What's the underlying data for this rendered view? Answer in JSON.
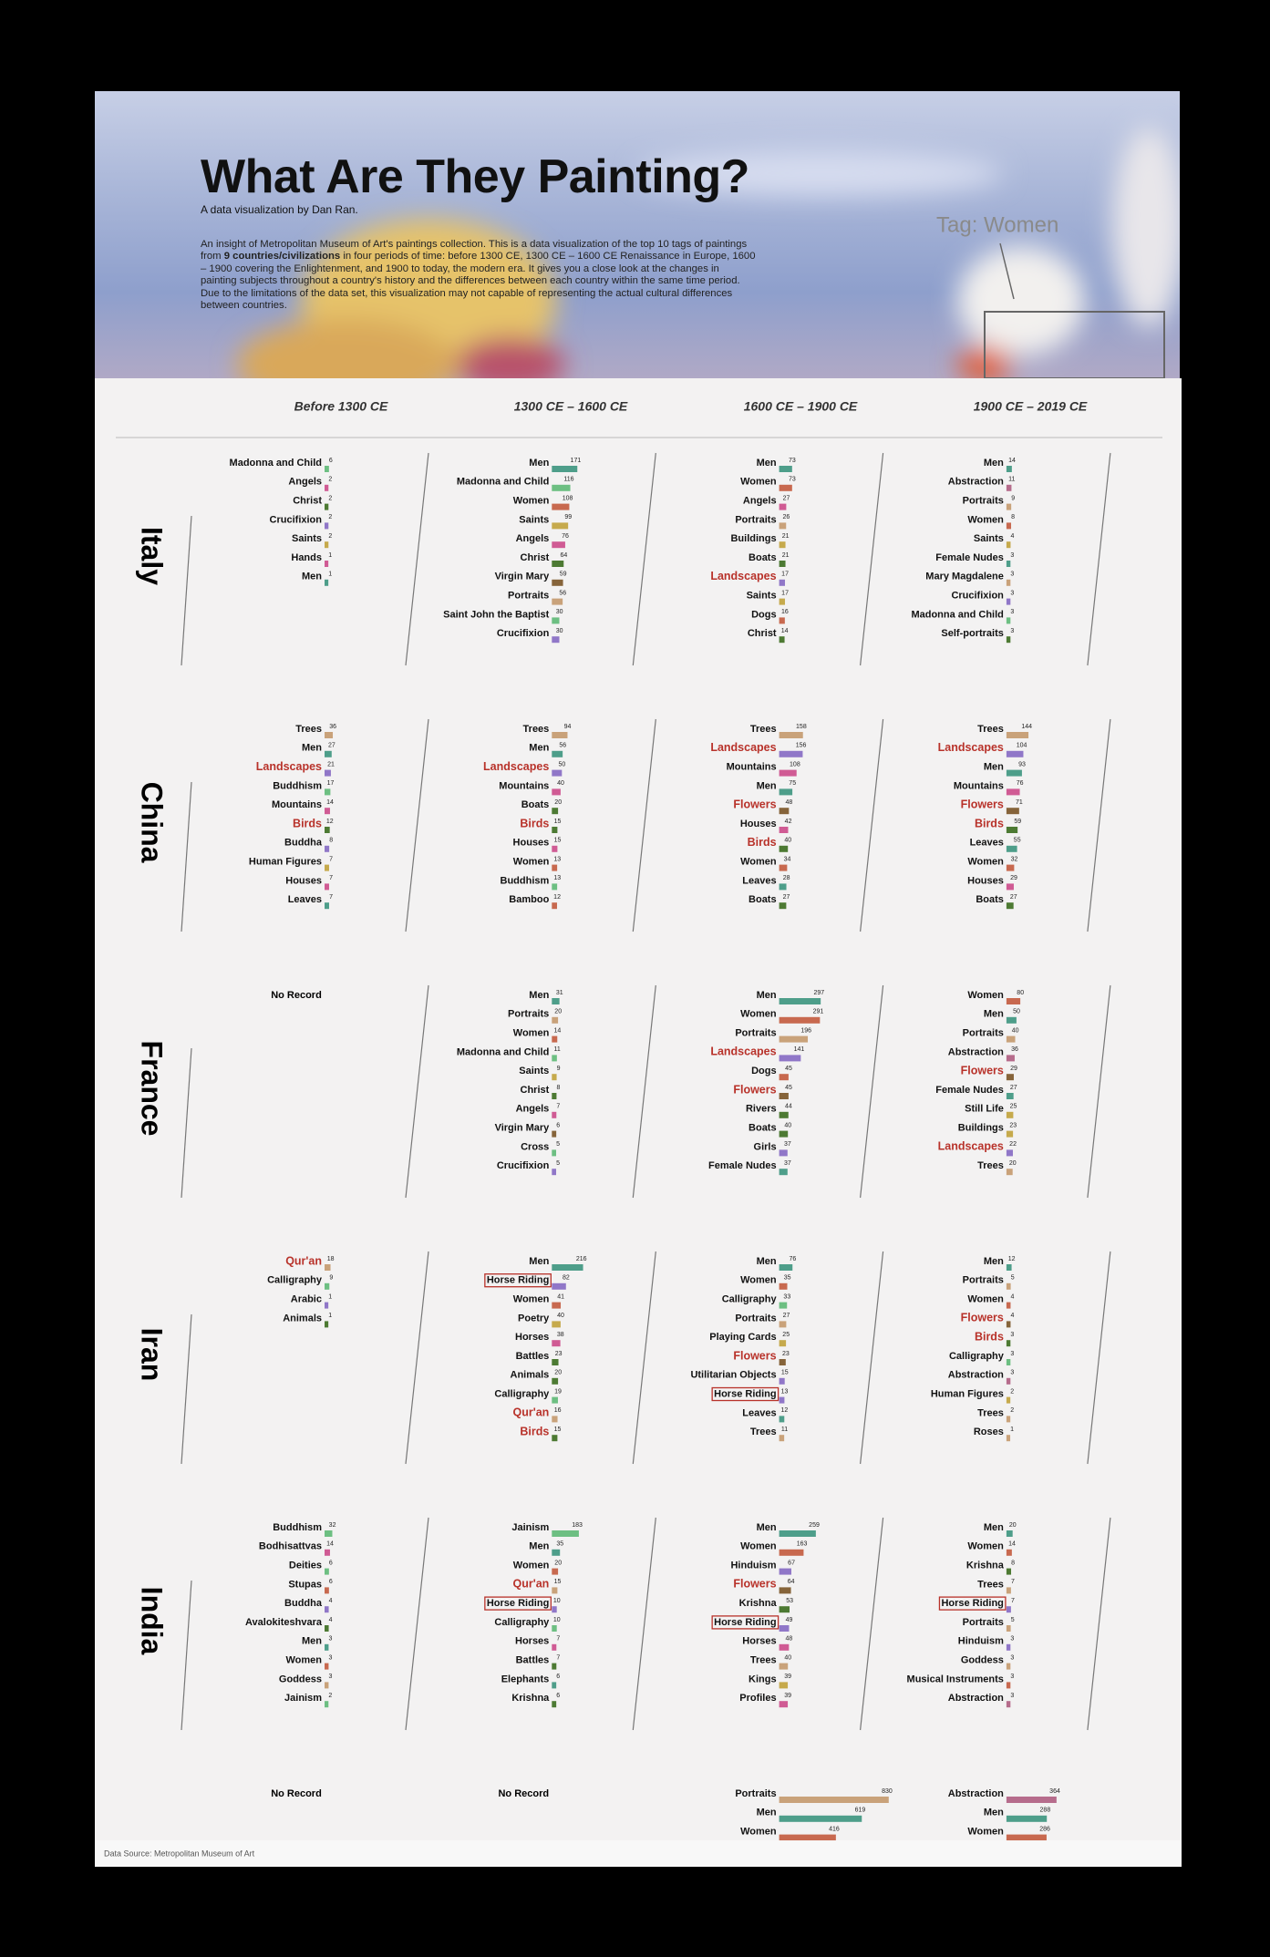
{
  "header": {
    "title": "What Are They Painting?",
    "byline": "A data visualization by Dan Ran.",
    "description": [
      "An insight of Metropolitan Museum of Art's paintings collection. This is a data visualization of the top 10 tags of paintings from ",
      "9 countries/civilizations",
      " in four periods of time: before 1300 CE, 1300 CE – 1600 CE Renaissance in Europe, 1600 – 1900 covering the Enlightenment, and 1900 to today, the modern era. It gives you a close look at the changes in painting subjects throughout a country's history and the differences between each country within the same time period. Due to the limitations of the data set, this visualization may not capable of representing the actual cultural differences between countries."
    ],
    "tag_label": "Tag: Women"
  },
  "periods": [
    "Before 1300 CE",
    "1300 CE – 1600 CE",
    "1600 CE – 1900 CE",
    "1900 CE – 2019 CE"
  ],
  "regions": [
    "Italy",
    "China",
    "France",
    "Iran",
    "India"
  ],
  "source": "Data Source: Metropolitan Museum of Art",
  "red_tags": [
    "Landscapes",
    "Flowers",
    "Birds",
    "Qur'an"
  ],
  "boxed_tags": [
    "Horse Riding"
  ],
  "tag_colors": {
    "Men": "#4e9e8a",
    "Women": "#c8694f",
    "Madonna and Child": "#6dbf82",
    "Angels": "#d05b94",
    "Christ": "#4d7a33",
    "Crucifixion": "#9077c8",
    "Saints": "#c6aa4c",
    "Hands": "#d05b94",
    "Virgin Mary": "#86643a",
    "Portraits": "#c9a27a",
    "Saint John the Baptist": "#6dbf82",
    "Buildings": "#c6aa4c",
    "Boats": "#4d7a33",
    "Landscapes": "#9077c8",
    "Dogs": "#c8694f",
    "Abstraction": "#b66c8c",
    "Female Nudes": "#4e9e8a",
    "Mary Magdalene": "#c9a27a",
    "Self-portraits": "#4d7a33",
    "Trees": "#c9a27a",
    "Buddhism": "#6dbf82",
    "Mountains": "#d05b94",
    "Birds": "#4d7a33",
    "Buddha": "#9077c8",
    "Human Figures": "#c6aa4c",
    "Houses": "#d05b94",
    "Leaves": "#4e9e8a",
    "Bamboo": "#c8694f",
    "Flowers": "#86643a",
    "Cross": "#6dbf82",
    "Rivers": "#4d7a33",
    "Girls": "#9077c8",
    "Still Life": "#c6aa4c",
    "Qur'an": "#c9a27a",
    "Calligraphy": "#6dbf82",
    "Arabic": "#9077c8",
    "Animals": "#4d7a33",
    "Horse Riding": "#9077c8",
    "Poetry": "#c6aa4c",
    "Horses": "#d05b94",
    "Battles": "#4d7a33",
    "Playing Cards": "#c6aa4c",
    "Utilitarian Objects": "#9077c8",
    "Roses": "#c9a27a",
    "Bodhisattvas": "#d05b94",
    "Deities": "#6dbf82",
    "Stupas": "#c8694f",
    "Avalokiteshvara": "#4d7a33",
    "Goddess": "#c9a27a",
    "Jainism": "#6dbf82",
    "Elephants": "#4e9e8a",
    "Krishna": "#4d7a33",
    "Hinduism": "#9077c8",
    "Kings": "#c6aa4c",
    "Profiles": "#d05b94",
    "Musical Instruments": "#c8694f"
  },
  "chart_data": [
    {
      "type": "bar",
      "categories": [
        "Madonna and Child",
        "Angels",
        "Christ",
        "Crucifixion",
        "Saints",
        "Hands",
        "Men"
      ],
      "values": [
        6,
        2,
        2,
        2,
        2,
        1,
        1
      ]
    },
    {
      "type": "bar",
      "categories": [
        "Men",
        "Madonna and Child",
        "Women",
        "Saints",
        "Angels",
        "Christ",
        "Virgin Mary",
        "Portraits",
        "Saint John the Baptist",
        "Crucifixion"
      ],
      "values": [
        171,
        116,
        108,
        99,
        76,
        64,
        59,
        56,
        30,
        30
      ]
    },
    {
      "type": "bar",
      "categories": [
        "Men",
        "Women",
        "Angels",
        "Portraits",
        "Buildings",
        "Boats",
        "Landscapes",
        "Saints",
        "Dogs",
        "Christ"
      ],
      "values": [
        73,
        73,
        27,
        26,
        21,
        21,
        17,
        17,
        16,
        14
      ]
    },
    {
      "type": "bar",
      "categories": [
        "Men",
        "Abstraction",
        "Portraits",
        "Women",
        "Saints",
        "Female Nudes",
        "Mary Magdalene",
        "Crucifixion",
        "Madonna and Child",
        "Self-portraits"
      ],
      "values": [
        14,
        11,
        9,
        8,
        4,
        3,
        3,
        3,
        3,
        3
      ]
    },
    {
      "type": "bar",
      "categories": [
        "Trees",
        "Men",
        "Landscapes",
        "Buddhism",
        "Mountains",
        "Birds",
        "Buddha",
        "Human Figures",
        "Houses",
        "Leaves"
      ],
      "values": [
        36,
        27,
        21,
        17,
        14,
        12,
        8,
        7,
        7,
        7
      ]
    },
    {
      "type": "bar",
      "categories": [
        "Trees",
        "Men",
        "Landscapes",
        "Mountains",
        "Boats",
        "Birds",
        "Houses",
        "Women",
        "Buddhism",
        "Bamboo"
      ],
      "values": [
        94,
        56,
        50,
        40,
        20,
        15,
        15,
        13,
        13,
        12
      ]
    },
    {
      "type": "bar",
      "categories": [
        "Trees",
        "Landscapes",
        "Mountains",
        "Men",
        "Flowers",
        "Houses",
        "Birds",
        "Women",
        "Leaves",
        "Boats"
      ],
      "values": [
        158,
        156,
        108,
        75,
        48,
        42,
        40,
        34,
        28,
        27
      ]
    },
    {
      "type": "bar",
      "categories": [
        "Trees",
        "Landscapes",
        "Men",
        "Mountains",
        "Flowers",
        "Birds",
        "Leaves",
        "Women",
        "Houses",
        "Boats"
      ],
      "values": [
        144,
        104,
        93,
        76,
        71,
        59,
        55,
        32,
        29,
        27
      ]
    },
    {
      "type": "bar",
      "note": "No Record",
      "categories": [],
      "values": []
    },
    {
      "type": "bar",
      "categories": [
        "Men",
        "Portraits",
        "Women",
        "Madonna and Child",
        "Saints",
        "Christ",
        "Angels",
        "Virgin Mary",
        "Cross",
        "Crucifixion"
      ],
      "values": [
        31,
        20,
        14,
        11,
        9,
        8,
        7,
        6,
        5,
        5
      ]
    },
    {
      "type": "bar",
      "categories": [
        "Men",
        "Women",
        "Portraits",
        "Landscapes",
        "Dogs",
        "Flowers",
        "Rivers",
        "Boats",
        "Girls",
        "Female Nudes"
      ],
      "values": [
        297,
        291,
        196,
        141,
        45,
        45,
        44,
        40,
        37,
        37
      ]
    },
    {
      "type": "bar",
      "categories": [
        "Women",
        "Men",
        "Portraits",
        "Abstraction",
        "Flowers",
        "Female Nudes",
        "Still Life",
        "Buildings",
        "Landscapes",
        "Trees"
      ],
      "values": [
        80,
        50,
        40,
        36,
        29,
        27,
        25,
        23,
        22,
        20
      ]
    },
    {
      "type": "bar",
      "categories": [
        "Qur'an",
        "Calligraphy",
        "Arabic",
        "Animals"
      ],
      "values": [
        18,
        9,
        1,
        1
      ]
    },
    {
      "type": "bar",
      "categories": [
        "Men",
        "Horse Riding",
        "Women",
        "Poetry",
        "Horses",
        "Battles",
        "Animals",
        "Calligraphy",
        "Qur'an",
        "Birds"
      ],
      "values": [
        216,
        82,
        41,
        40,
        38,
        23,
        20,
        19,
        16,
        15
      ]
    },
    {
      "type": "bar",
      "categories": [
        "Men",
        "Women",
        "Calligraphy",
        "Portraits",
        "Playing Cards",
        "Flowers",
        "Utilitarian Objects",
        "Horse Riding",
        "Leaves",
        "Trees"
      ],
      "values": [
        76,
        35,
        33,
        27,
        25,
        23,
        15,
        13,
        12,
        11
      ]
    },
    {
      "type": "bar",
      "categories": [
        "Men",
        "Portraits",
        "Women",
        "Flowers",
        "Birds",
        "Calligraphy",
        "Abstraction",
        "Human Figures",
        "Trees",
        "Roses"
      ],
      "values": [
        12,
        5,
        4,
        4,
        3,
        3,
        3,
        2,
        2,
        1
      ]
    },
    {
      "type": "bar",
      "categories": [
        "Buddhism",
        "Bodhisattvas",
        "Deities",
        "Stupas",
        "Buddha",
        "Avalokiteshvara",
        "Men",
        "Women",
        "Goddess",
        "Jainism"
      ],
      "values": [
        32,
        14,
        6,
        6,
        4,
        4,
        3,
        3,
        3,
        2
      ]
    },
    {
      "type": "bar",
      "categories": [
        "Jainism",
        "Men",
        "Women",
        "Qur'an",
        "Horse Riding",
        "Calligraphy",
        "Horses",
        "Battles",
        "Elephants",
        "Krishna"
      ],
      "values": [
        183,
        35,
        20,
        15,
        10,
        10,
        7,
        7,
        6,
        6
      ]
    },
    {
      "type": "bar",
      "categories": [
        "Men",
        "Women",
        "Hinduism",
        "Flowers",
        "Krishna",
        "Horse Riding",
        "Horses",
        "Trees",
        "Kings",
        "Profiles"
      ],
      "values": [
        259,
        163,
        67,
        64,
        53,
        49,
        48,
        40,
        39,
        39
      ]
    },
    {
      "type": "bar",
      "categories": [
        "Men",
        "Women",
        "Krishna",
        "Trees",
        "Horse Riding",
        "Portraits",
        "Hinduism",
        "Goddess",
        "Musical Instruments",
        "Abstraction"
      ],
      "values": [
        20,
        14,
        8,
        7,
        7,
        5,
        3,
        3,
        3,
        3
      ]
    },
    {
      "type": "bar",
      "note": "No Record",
      "categories": [],
      "values": []
    },
    {
      "type": "bar",
      "note": "No Record",
      "categories": [],
      "values": []
    },
    {
      "type": "bar",
      "categories": [
        "Portraits",
        "Men",
        "Women"
      ],
      "values": [
        830,
        619,
        416
      ]
    },
    {
      "type": "bar",
      "categories": [
        "Abstraction",
        "Men",
        "Women"
      ],
      "values": [
        364,
        288,
        286
      ]
    }
  ]
}
